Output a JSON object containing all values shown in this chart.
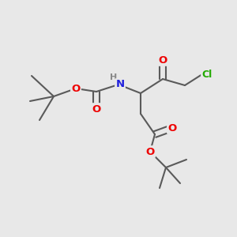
{
  "bg_color": "#e8e8e8",
  "bond_color": "#5a5a5a",
  "bond_width": 1.5,
  "atom_colors": {
    "O": "#ee0000",
    "N": "#2020dd",
    "Cl": "#22aa00",
    "H": "#888888",
    "C": "#5a5a5a"
  },
  "font_size_atom": 9.5,
  "font_size_Cl": 9.0,
  "font_size_H": 8.0
}
